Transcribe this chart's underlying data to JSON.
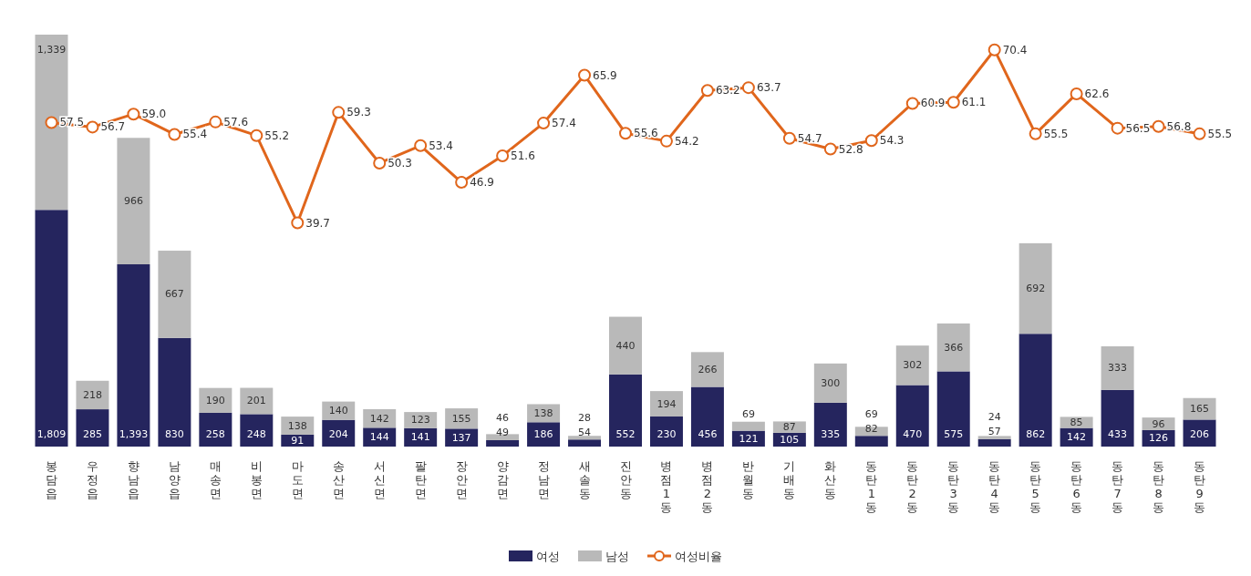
{
  "chart_data": {
    "type": "bar",
    "stacked": true,
    "legend": "bottom",
    "marker": "circle",
    "categories": [
      "봉담읍",
      "우정읍",
      "향남읍",
      "남양읍",
      "매송면",
      "비봉면",
      "마도면",
      "송산면",
      "서신면",
      "팔탄면",
      "장안면",
      "양감면",
      "정남면",
      "새솔동",
      "진안동",
      "병점1동",
      "병점2동",
      "반월동",
      "기배동",
      "화산동",
      "동탄1동",
      "동탄2동",
      "동탄3동",
      "동탄4동",
      "동탄5동",
      "동탄6동",
      "동탄7동",
      "동탄8동",
      "동탄9동"
    ],
    "series": [
      {
        "name": "여성",
        "color": "#25255e",
        "values": [
          1809,
          285,
          1393,
          830,
          258,
          248,
          91,
          204,
          144,
          141,
          137,
          49,
          186,
          54,
          552,
          230,
          456,
          121,
          105,
          335,
          82,
          470,
          575,
          57,
          862,
          142,
          433,
          126,
          206
        ],
        "value_labels": [
          "1,809",
          "285",
          "1,393",
          "830",
          "258",
          "248",
          "91",
          "204",
          "144",
          "141",
          "137",
          "49",
          "186",
          "54",
          "552",
          "230",
          "456",
          "121",
          "105",
          "335",
          "82",
          "470",
          "575",
          "57",
          "862",
          "142",
          "433",
          "126",
          "206"
        ]
      },
      {
        "name": "남성",
        "color": "#b9b9b9",
        "values": [
          1339,
          218,
          966,
          667,
          190,
          201,
          138,
          140,
          142,
          123,
          155,
          46,
          138,
          28,
          440,
          194,
          266,
          69,
          87,
          300,
          69,
          302,
          366,
          24,
          692,
          85,
          333,
          96,
          165
        ],
        "value_labels": [
          "1,339",
          "218",
          "966",
          "667",
          "190",
          "201",
          "138",
          "140",
          "142",
          "123",
          "155",
          "46",
          "138",
          "28",
          "440",
          "194",
          "266",
          "69",
          "87",
          "300",
          "69",
          "302",
          "366",
          "24",
          "692",
          "85",
          "333",
          "96",
          "165"
        ]
      },
      {
        "name": "여성비율",
        "type": "line",
        "axis": "y2",
        "color": "#e0661c",
        "values": [
          57.5,
          56.7,
          59.0,
          55.4,
          57.6,
          55.2,
          39.7,
          59.3,
          50.3,
          53.4,
          46.9,
          51.6,
          57.4,
          65.9,
          55.6,
          54.2,
          63.2,
          63.7,
          54.7,
          52.8,
          54.3,
          60.9,
          61.1,
          70.4,
          55.5,
          62.6,
          56.5,
          56.8,
          55.5
        ],
        "value_labels": [
          "57.5",
          "56.7",
          "59.0",
          "55.4",
          "57.6",
          "55.2",
          "39.7",
          "59.3",
          "50.3",
          "53.4",
          "46.9",
          "51.6",
          "57.4",
          "65.9",
          "55.6",
          "54.2",
          "63.2",
          "63.7",
          "54.7",
          "52.8",
          "54.3",
          "60.9",
          "61.1",
          "70.4",
          "55.5",
          "62.6",
          "56.5",
          "56.8",
          "55.5"
        ]
      }
    ]
  }
}
